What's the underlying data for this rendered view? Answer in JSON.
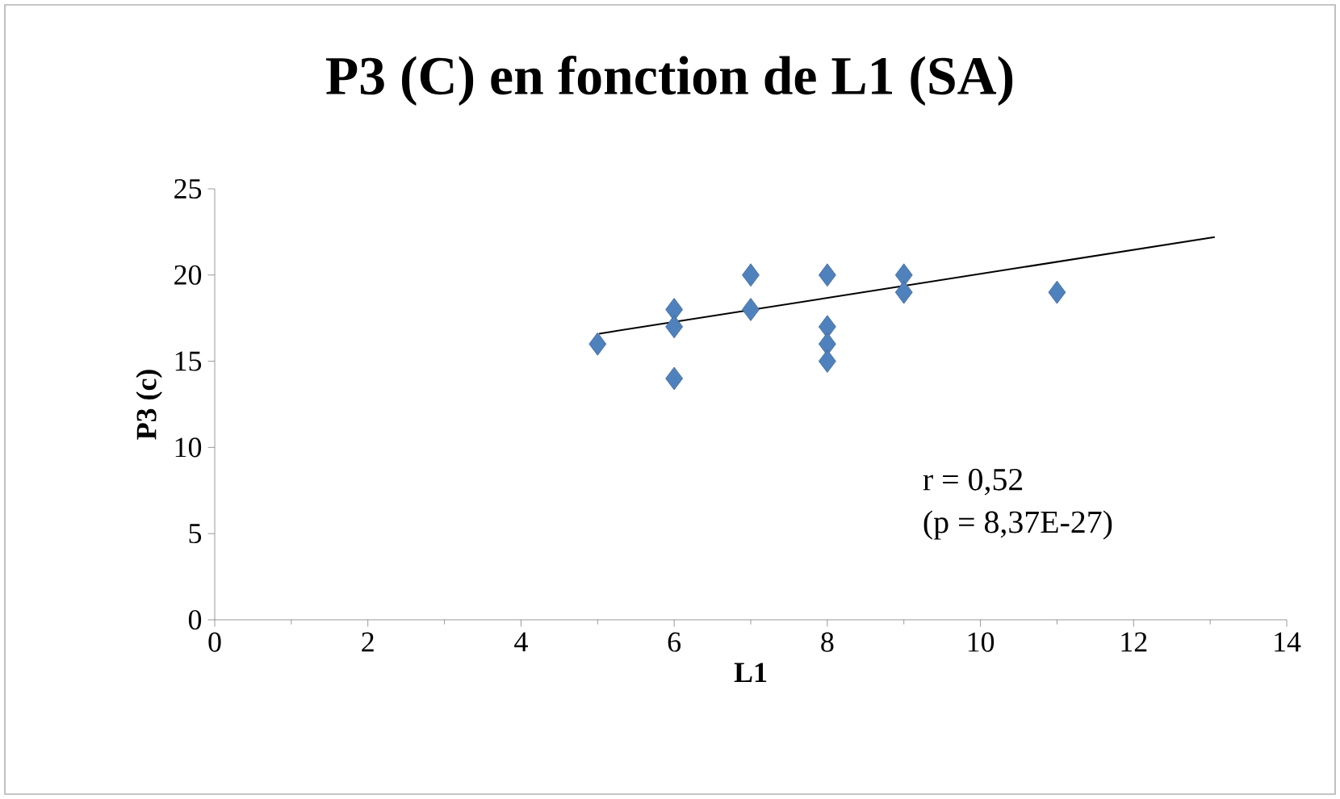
{
  "chart_data": {
    "type": "scatter",
    "title": "P3 (C) en fonction de L1 (SA)",
    "xlabel": "L1",
    "ylabel": "P3 (c)",
    "x": [
      5,
      6,
      6,
      6,
      7,
      7,
      8,
      8,
      8,
      8,
      9,
      9,
      11
    ],
    "values": [
      16,
      18,
      17,
      14,
      20,
      18,
      20,
      17,
      16,
      15,
      20,
      19,
      19
    ],
    "color": "#4f81bd",
    "marker": "diamond",
    "series": [
      {
        "type": "line",
        "x": [
          5.02,
          13.06
        ],
        "values": [
          16.6,
          22.2
        ],
        "color": "#000000",
        "marker": "none"
      }
    ],
    "xlim": [
      0,
      14
    ],
    "xticks": [
      0,
      2,
      4,
      6,
      8,
      10,
      12,
      14
    ],
    "ylim": [
      0,
      25
    ],
    "yticks": [
      0,
      5,
      10,
      15,
      20,
      25
    ],
    "grid": false,
    "annotations": [
      "r = 0,52",
      "(p = 8,37E-27)"
    ]
  }
}
